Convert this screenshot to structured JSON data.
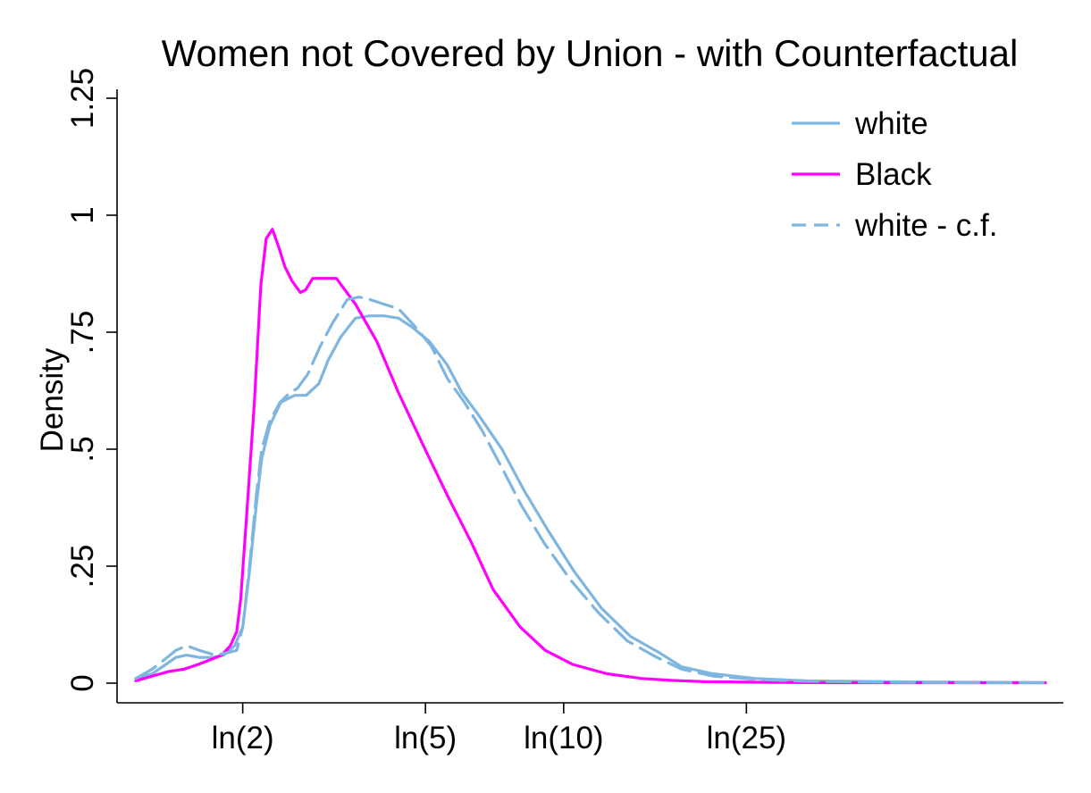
{
  "chart_data": {
    "type": "line",
    "title": "Women not Covered by Union - with Counterfactual",
    "xlabel": "",
    "ylabel": "Density",
    "xscale": "log",
    "xlim": [
      1.17,
      112
    ],
    "ylim": [
      0,
      1.25
    ],
    "x_ticks": [
      {
        "value": 2,
        "label": "ln(2)"
      },
      {
        "value": 5,
        "label": "ln(5)"
      },
      {
        "value": 10,
        "label": "ln(10)"
      },
      {
        "value": 25,
        "label": "ln(25)"
      }
    ],
    "y_ticks": [
      {
        "value": 0,
        "label": "0"
      },
      {
        "value": 0.25,
        "label": ".25"
      },
      {
        "value": 0.5,
        "label": ".5"
      },
      {
        "value": 0.75,
        "label": ".75"
      },
      {
        "value": 1,
        "label": "1"
      },
      {
        "value": 1.25,
        "label": "1.25"
      }
    ],
    "grid": false,
    "legend_position": "top-right",
    "series": [
      {
        "name": "white",
        "color": "#7eb6e0",
        "dash": "solid",
        "x": [
          1.17,
          1.27,
          1.36,
          1.43,
          1.51,
          1.61,
          1.72,
          1.82,
          1.92,
          2.0,
          2.07,
          2.14,
          2.2,
          2.29,
          2.42,
          2.53,
          2.6,
          2.75,
          2.93,
          3.07,
          3.27,
          3.52,
          3.78,
          4.06,
          4.37,
          4.69,
          5.1,
          5.58,
          6.01,
          6.56,
          7.34,
          8.22,
          9.2,
          10.52,
          12.09,
          13.98,
          16.15,
          18.06,
          21.16,
          26.22,
          33.88,
          50.5,
          75.5,
          112.0
        ],
        "y": [
          0.01,
          0.02,
          0.04,
          0.055,
          0.06,
          0.055,
          0.055,
          0.06,
          0.08,
          0.12,
          0.24,
          0.38,
          0.48,
          0.55,
          0.6,
          0.61,
          0.615,
          0.615,
          0.64,
          0.69,
          0.74,
          0.78,
          0.785,
          0.785,
          0.78,
          0.76,
          0.73,
          0.68,
          0.62,
          0.57,
          0.5,
          0.41,
          0.33,
          0.24,
          0.16,
          0.1,
          0.065,
          0.035,
          0.02,
          0.01,
          0.005,
          0.003,
          0.002,
          0.001
        ]
      },
      {
        "name": "Black",
        "color": "#ff00ff",
        "dash": "solid",
        "x": [
          1.17,
          1.27,
          1.38,
          1.49,
          1.6,
          1.7,
          1.8,
          1.88,
          1.94,
          1.98,
          2.04,
          2.12,
          2.19,
          2.25,
          2.32,
          2.4,
          2.47,
          2.56,
          2.67,
          2.74,
          2.84,
          2.97,
          3.2,
          3.52,
          3.92,
          4.37,
          4.99,
          5.59,
          6.3,
          7.02,
          8.04,
          9.12,
          10.46,
          12.43,
          14.82,
          17.16,
          20.33,
          27.51,
          38.2,
          58.3,
          84.1,
          112.0
        ],
        "y": [
          0.005,
          0.015,
          0.025,
          0.03,
          0.04,
          0.05,
          0.06,
          0.08,
          0.11,
          0.18,
          0.36,
          0.6,
          0.85,
          0.95,
          0.97,
          0.93,
          0.89,
          0.86,
          0.835,
          0.84,
          0.865,
          0.865,
          0.865,
          0.81,
          0.73,
          0.62,
          0.5,
          0.4,
          0.3,
          0.2,
          0.12,
          0.07,
          0.04,
          0.02,
          0.01,
          0.006,
          0.003,
          0.002,
          0.001,
          0.001,
          0.001,
          0.001
        ]
      },
      {
        "name": "white - c.f.",
        "color": "#7eb6e0",
        "dash": "dashed",
        "x": [
          1.17,
          1.27,
          1.35,
          1.43,
          1.51,
          1.61,
          1.74,
          1.85,
          1.94,
          2.0,
          2.07,
          2.14,
          2.2,
          2.29,
          2.41,
          2.53,
          2.63,
          2.77,
          2.95,
          3.14,
          3.38,
          3.59,
          3.78,
          4.06,
          4.37,
          4.77,
          5.15,
          5.59,
          6.08,
          6.64,
          7.43,
          8.09,
          9.06,
          10.36,
          11.92,
          13.77,
          15.96,
          18.06,
          21.16,
          26.22,
          33.88,
          50.5,
          75.5,
          112.0
        ],
        "y": [
          0.01,
          0.03,
          0.05,
          0.07,
          0.08,
          0.07,
          0.06,
          0.065,
          0.07,
          0.12,
          0.25,
          0.4,
          0.5,
          0.56,
          0.6,
          0.62,
          0.63,
          0.66,
          0.72,
          0.77,
          0.82,
          0.825,
          0.82,
          0.81,
          0.8,
          0.76,
          0.72,
          0.65,
          0.6,
          0.54,
          0.45,
          0.38,
          0.3,
          0.22,
          0.15,
          0.09,
          0.055,
          0.03,
          0.015,
          0.008,
          0.004,
          0.002,
          0.001,
          0.001
        ]
      }
    ]
  }
}
